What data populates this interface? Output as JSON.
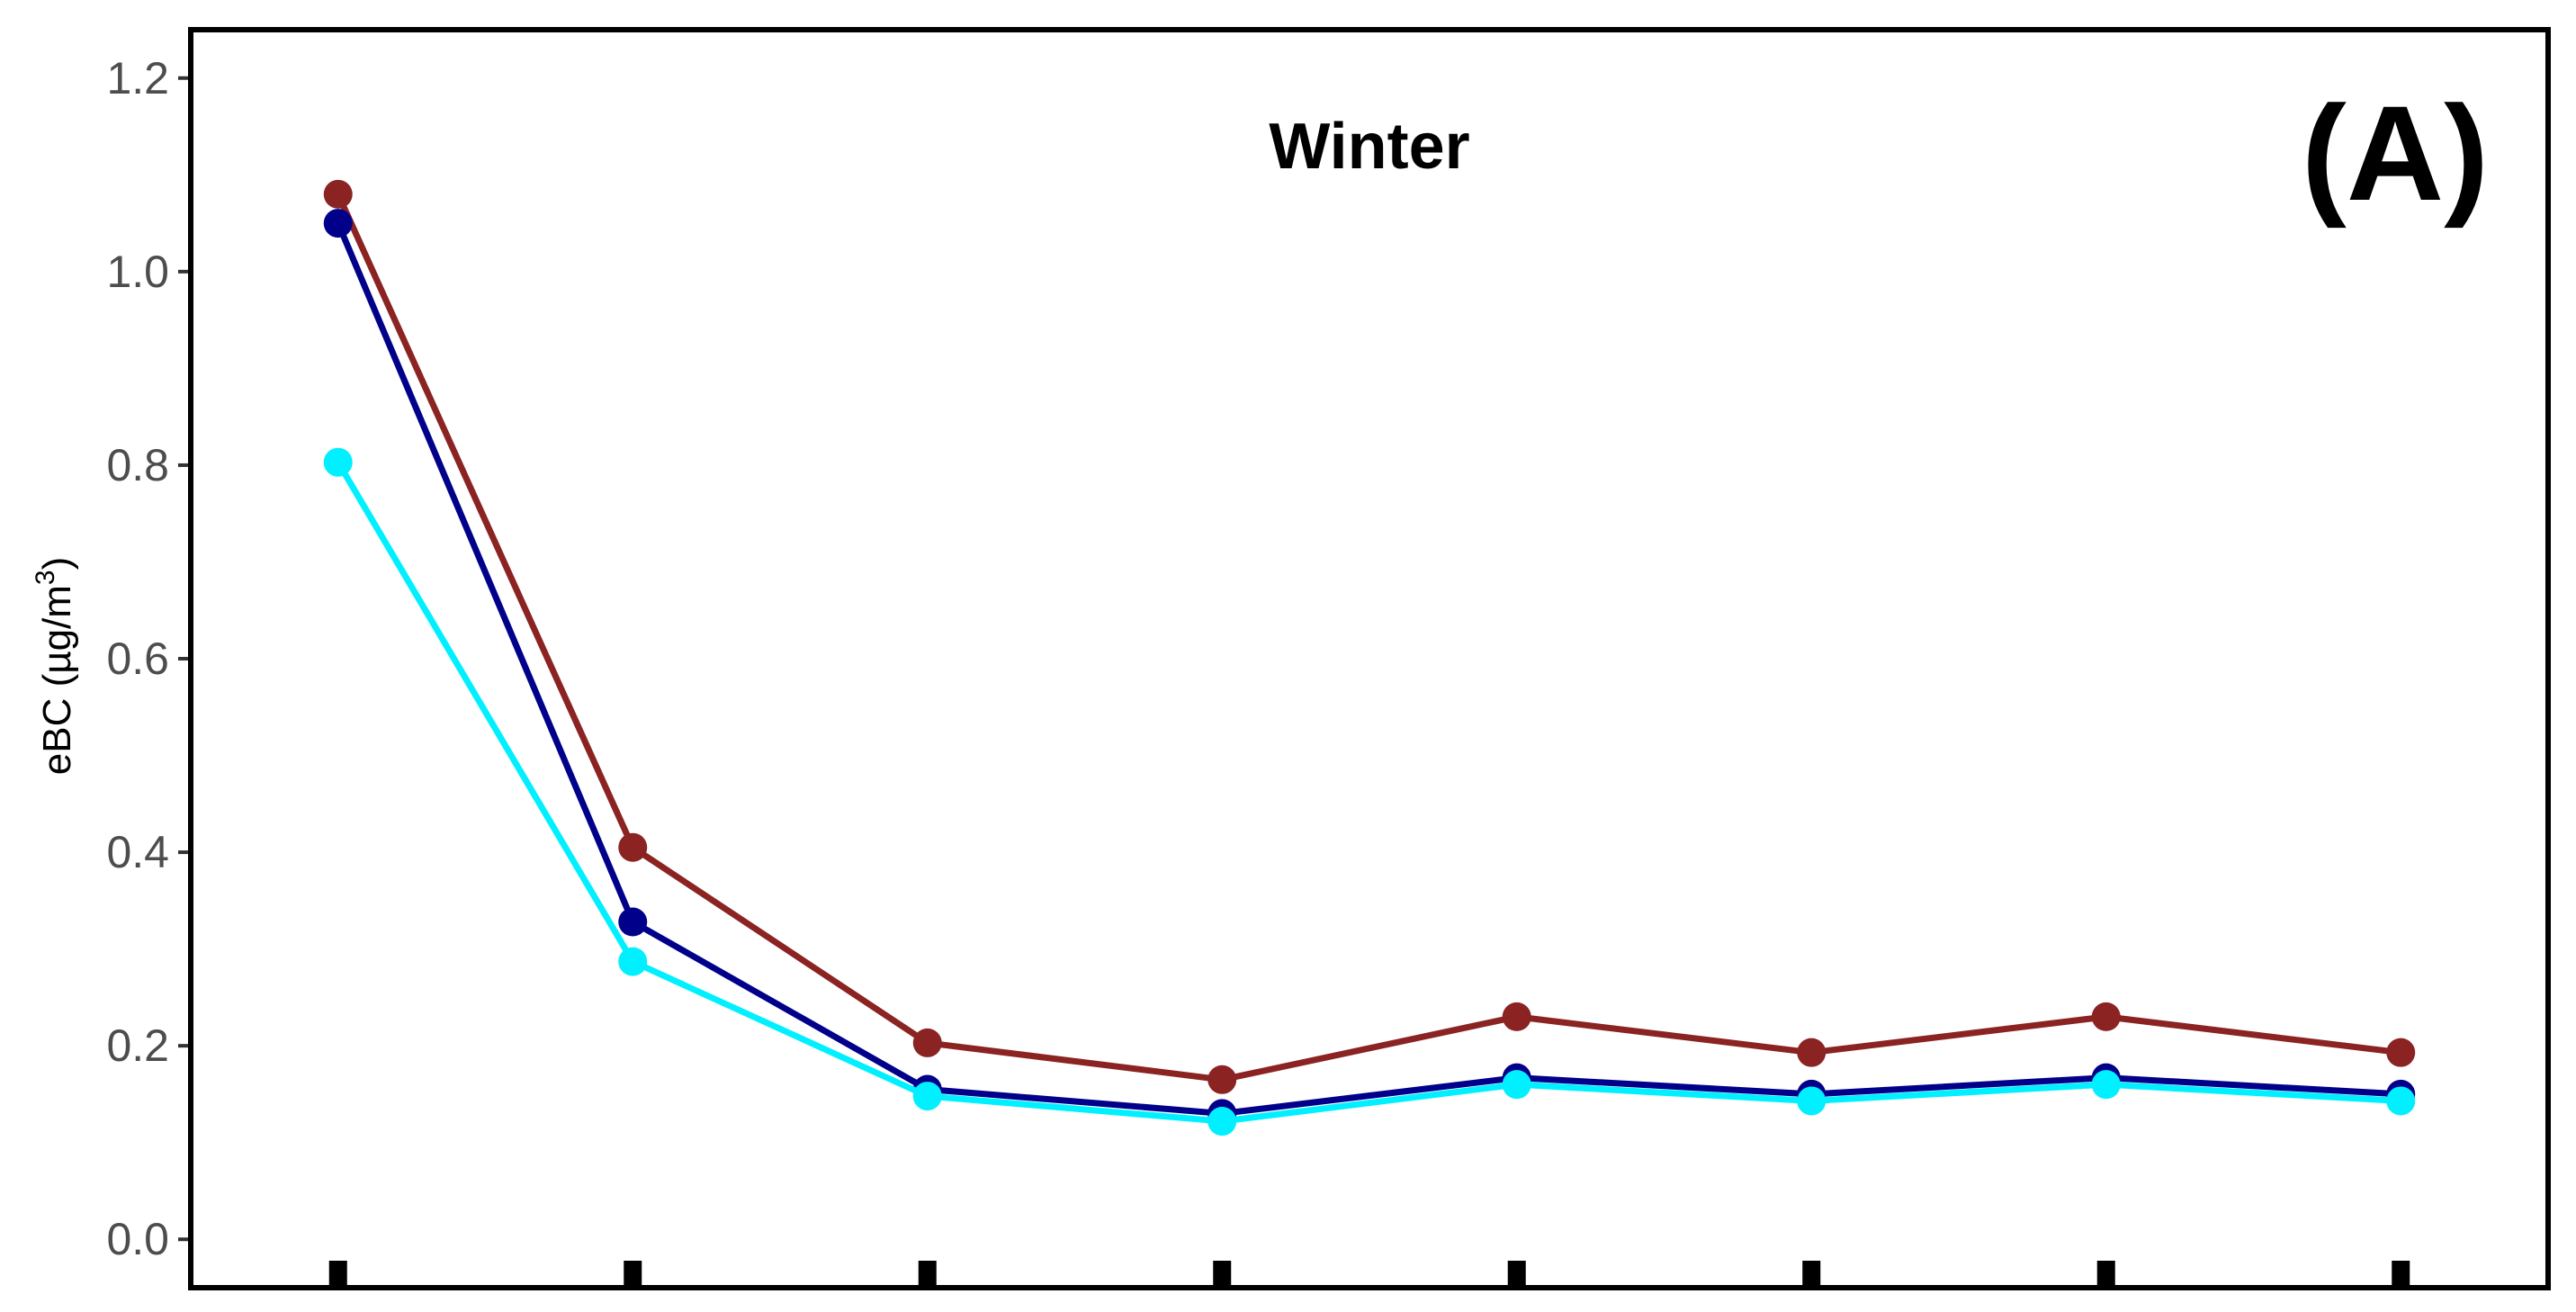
{
  "chart_data": {
    "type": "line",
    "title": "Winter",
    "panel_label": "(A)",
    "ylabel": "eBC (µg/m",
    "ylabel_sup": "3",
    "ylabel_close": ")",
    "xlabel": "",
    "ylim": [
      -0.05,
      1.25
    ],
    "yticks": [
      0.0,
      0.2,
      0.4,
      0.6,
      0.8,
      1.0,
      1.2
    ],
    "ytick_labels": [
      "0.0",
      "0.2",
      "0.4",
      "0.6",
      "0.8",
      "1.0",
      "1.2"
    ],
    "x": [
      1,
      2,
      3,
      4,
      5,
      6,
      7,
      8
    ],
    "xlim": [
      0.5,
      8.5
    ],
    "grid": false,
    "series": [
      {
        "color": "#8b2323",
        "values": [
          1.08,
          0.405,
          0.203,
          0.165,
          0.23,
          0.193,
          0.23,
          0.193
        ]
      },
      {
        "color": "#00008b",
        "values": [
          1.05,
          0.328,
          0.155,
          0.13,
          0.167,
          0.15,
          0.167,
          0.15
        ]
      },
      {
        "color": "#00f0ff",
        "values": [
          0.803,
          0.287,
          0.148,
          0.122,
          0.16,
          0.143,
          0.16,
          0.143
        ]
      }
    ]
  }
}
